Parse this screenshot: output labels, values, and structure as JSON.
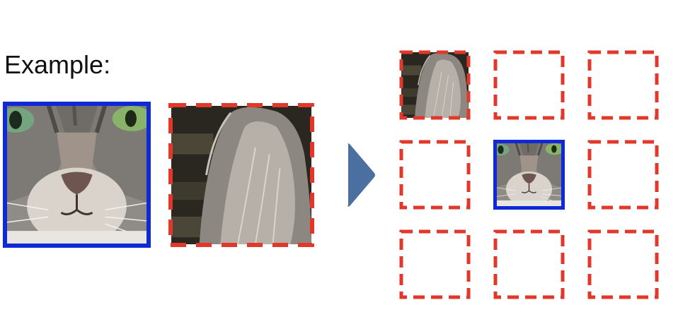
{
  "example": {
    "heading": "Example:"
  },
  "colors": {
    "center_patch_border": "#1029d6",
    "neighbor_patch_border": "#e2382b",
    "arrow_fill": "#4a6fa0",
    "background": "#ffffff"
  },
  "images": {
    "center_patch": "cat-face-center-crop",
    "neighbor_patch": "cat-ear-top-left-crop"
  },
  "grid": {
    "rows": 3,
    "columns": 3,
    "center_cell": "middle-center",
    "filled_neighbor_cell": "top-left"
  },
  "icons": {
    "arrow": "play-triangle-icon"
  }
}
